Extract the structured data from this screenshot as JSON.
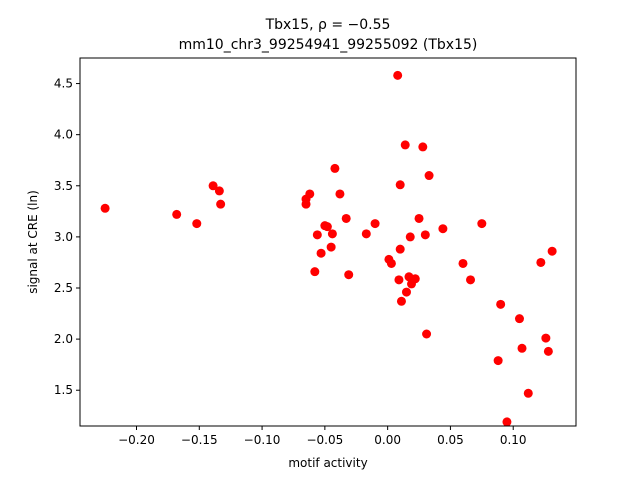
{
  "chart_data": {
    "type": "scatter",
    "title": "Tbx15, ρ = −0.55",
    "subtitle": "mm10_chr3_99254941_99255092 (Tbx15)",
    "xlabel": "motif activity",
    "ylabel": "signal at CRE (ln)",
    "xlim": [
      -0.245,
      0.15
    ],
    "ylim": [
      1.15,
      4.75
    ],
    "grid": false,
    "marker_color": "#ff0000",
    "xticks": [
      {
        "value": -0.2,
        "label": "−0.20"
      },
      {
        "value": -0.15,
        "label": "−0.15"
      },
      {
        "value": -0.1,
        "label": "−0.10"
      },
      {
        "value": -0.05,
        "label": "−0.05"
      },
      {
        "value": 0.0,
        "label": "0.00"
      },
      {
        "value": 0.05,
        "label": "0.05"
      },
      {
        "value": 0.1,
        "label": "0.10"
      }
    ],
    "yticks": [
      {
        "value": 1.5,
        "label": "1.5"
      },
      {
        "value": 2.0,
        "label": "2.0"
      },
      {
        "value": 2.5,
        "label": "2.5"
      },
      {
        "value": 3.0,
        "label": "3.0"
      },
      {
        "value": 3.5,
        "label": "3.5"
      },
      {
        "value": 4.0,
        "label": "4.0"
      },
      {
        "value": 4.5,
        "label": "4.5"
      }
    ],
    "points": [
      {
        "x": -0.225,
        "y": 3.28
      },
      {
        "x": -0.168,
        "y": 3.22
      },
      {
        "x": -0.152,
        "y": 3.13
      },
      {
        "x": -0.139,
        "y": 3.5
      },
      {
        "x": -0.134,
        "y": 3.45
      },
      {
        "x": -0.133,
        "y": 3.32
      },
      {
        "x": -0.065,
        "y": 3.37
      },
      {
        "x": -0.065,
        "y": 3.32
      },
      {
        "x": -0.062,
        "y": 3.42
      },
      {
        "x": -0.058,
        "y": 2.66
      },
      {
        "x": -0.056,
        "y": 3.02
      },
      {
        "x": -0.053,
        "y": 2.84
      },
      {
        "x": -0.05,
        "y": 3.11
      },
      {
        "x": -0.048,
        "y": 3.1
      },
      {
        "x": -0.045,
        "y": 2.9
      },
      {
        "x": -0.044,
        "y": 3.03
      },
      {
        "x": -0.042,
        "y": 3.67
      },
      {
        "x": -0.038,
        "y": 3.42
      },
      {
        "x": -0.033,
        "y": 3.18
      },
      {
        "x": -0.031,
        "y": 2.63
      },
      {
        "x": -0.017,
        "y": 3.03
      },
      {
        "x": -0.01,
        "y": 3.13
      },
      {
        "x": 0.001,
        "y": 2.78
      },
      {
        "x": 0.003,
        "y": 2.74
      },
      {
        "x": 0.008,
        "y": 4.58
      },
      {
        "x": 0.009,
        "y": 2.58
      },
      {
        "x": 0.01,
        "y": 2.88
      },
      {
        "x": 0.01,
        "y": 3.51
      },
      {
        "x": 0.011,
        "y": 2.37
      },
      {
        "x": 0.014,
        "y": 3.9
      },
      {
        "x": 0.015,
        "y": 2.46
      },
      {
        "x": 0.017,
        "y": 2.61
      },
      {
        "x": 0.018,
        "y": 3.0
      },
      {
        "x": 0.019,
        "y": 2.54
      },
      {
        "x": 0.02,
        "y": 2.58
      },
      {
        "x": 0.022,
        "y": 2.59
      },
      {
        "x": 0.025,
        "y": 3.18
      },
      {
        "x": 0.028,
        "y": 3.88
      },
      {
        "x": 0.03,
        "y": 3.02
      },
      {
        "x": 0.031,
        "y": 2.05
      },
      {
        "x": 0.033,
        "y": 3.6
      },
      {
        "x": 0.044,
        "y": 3.08
      },
      {
        "x": 0.06,
        "y": 2.74
      },
      {
        "x": 0.066,
        "y": 2.58
      },
      {
        "x": 0.075,
        "y": 3.13
      },
      {
        "x": 0.088,
        "y": 1.79
      },
      {
        "x": 0.09,
        "y": 2.34
      },
      {
        "x": 0.095,
        "y": 1.19
      },
      {
        "x": 0.105,
        "y": 2.2
      },
      {
        "x": 0.107,
        "y": 1.91
      },
      {
        "x": 0.112,
        "y": 1.47
      },
      {
        "x": 0.122,
        "y": 2.75
      },
      {
        "x": 0.126,
        "y": 2.01
      },
      {
        "x": 0.128,
        "y": 1.88
      },
      {
        "x": 0.131,
        "y": 2.86
      }
    ]
  }
}
